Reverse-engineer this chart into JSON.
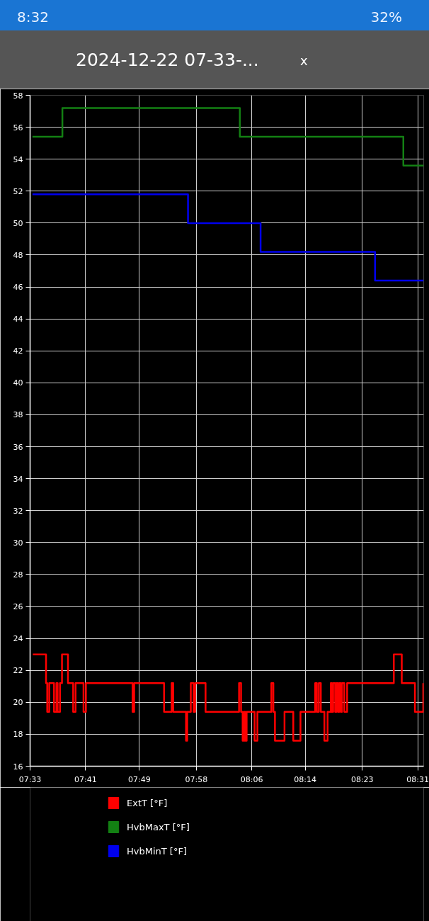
{
  "chart_data": {
    "type": "step",
    "title": "2024-12-22 07-33-...",
    "annotations": [
      "8:32",
      "32%",
      "x"
    ],
    "xlim": [
      7.55,
      8.537
    ],
    "xticks": [
      {
        "value": 7.55,
        "label": "07:33"
      },
      {
        "value": 7.689,
        "label": "07:41"
      },
      {
        "value": 7.824,
        "label": "07:49"
      },
      {
        "value": 7.967,
        "label": "07:58"
      },
      {
        "value": 8.106,
        "label": "08:06"
      },
      {
        "value": 8.24,
        "label": "08:14"
      },
      {
        "value": 8.383,
        "label": "08:23"
      },
      {
        "value": 8.522,
        "label": "08:31"
      }
    ],
    "ylim": [
      16,
      58
    ],
    "yticks": [
      16,
      18,
      20,
      22,
      24,
      26,
      28,
      30,
      32,
      34,
      36,
      38,
      40,
      42,
      44,
      46,
      48,
      50,
      52,
      54,
      56,
      58
    ],
    "grid": true,
    "legend": "bottom",
    "series": [
      {
        "name": "ExtT [°F]",
        "color": "#ff0000",
        "x": [
          7.557,
          7.59,
          7.593,
          7.598,
          7.61,
          7.616,
          7.619,
          7.625,
          7.63,
          7.645,
          7.658,
          7.664,
          7.684,
          7.69,
          7.807,
          7.811,
          7.886,
          7.905,
          7.909,
          7.941,
          7.944,
          7.953,
          7.96,
          7.964,
          7.99,
          8.074,
          8.079,
          8.083,
          8.087,
          8.089,
          8.093,
          8.113,
          8.12,
          8.155,
          8.16,
          8.164,
          8.188,
          8.21,
          8.228,
          8.265,
          8.269,
          8.274,
          8.279,
          8.288,
          8.296,
          8.304,
          8.307,
          8.31,
          8.315,
          8.318,
          8.322,
          8.325,
          8.329,
          8.332,
          8.338,
          8.345,
          8.462,
          8.482,
          8.515,
          8.536
        ],
        "values": [
          23.0,
          21.2,
          19.4,
          21.2,
          19.4,
          21.2,
          19.4,
          21.2,
          23.0,
          21.2,
          19.4,
          21.2,
          19.4,
          21.2,
          19.4,
          21.2,
          19.4,
          21.2,
          19.4,
          17.6,
          19.4,
          21.2,
          19.4,
          21.2,
          19.4,
          21.2,
          19.4,
          17.6,
          19.4,
          17.6,
          19.4,
          17.6,
          19.4,
          21.2,
          19.4,
          17.6,
          19.4,
          17.6,
          19.4,
          21.2,
          19.4,
          21.2,
          19.4,
          17.6,
          19.4,
          21.2,
          19.4,
          21.2,
          19.4,
          21.2,
          19.4,
          21.2,
          19.4,
          21.2,
          19.4,
          21.2,
          23.0,
          21.2,
          19.4,
          21.2
        ]
      },
      {
        "name": "HvbMaxT [°F]",
        "color": "#138013",
        "x": [
          7.556,
          7.631,
          8.076,
          8.486,
          8.537
        ],
        "values": [
          55.4,
          57.2,
          55.4,
          53.6,
          53.6
        ]
      },
      {
        "name": "HvbMinT [°F]",
        "color": "#0000ee",
        "x": [
          7.556,
          7.946,
          8.128,
          8.415,
          8.537
        ],
        "values": [
          51.8,
          50.0,
          48.2,
          46.4,
          46.4
        ]
      }
    ]
  }
}
